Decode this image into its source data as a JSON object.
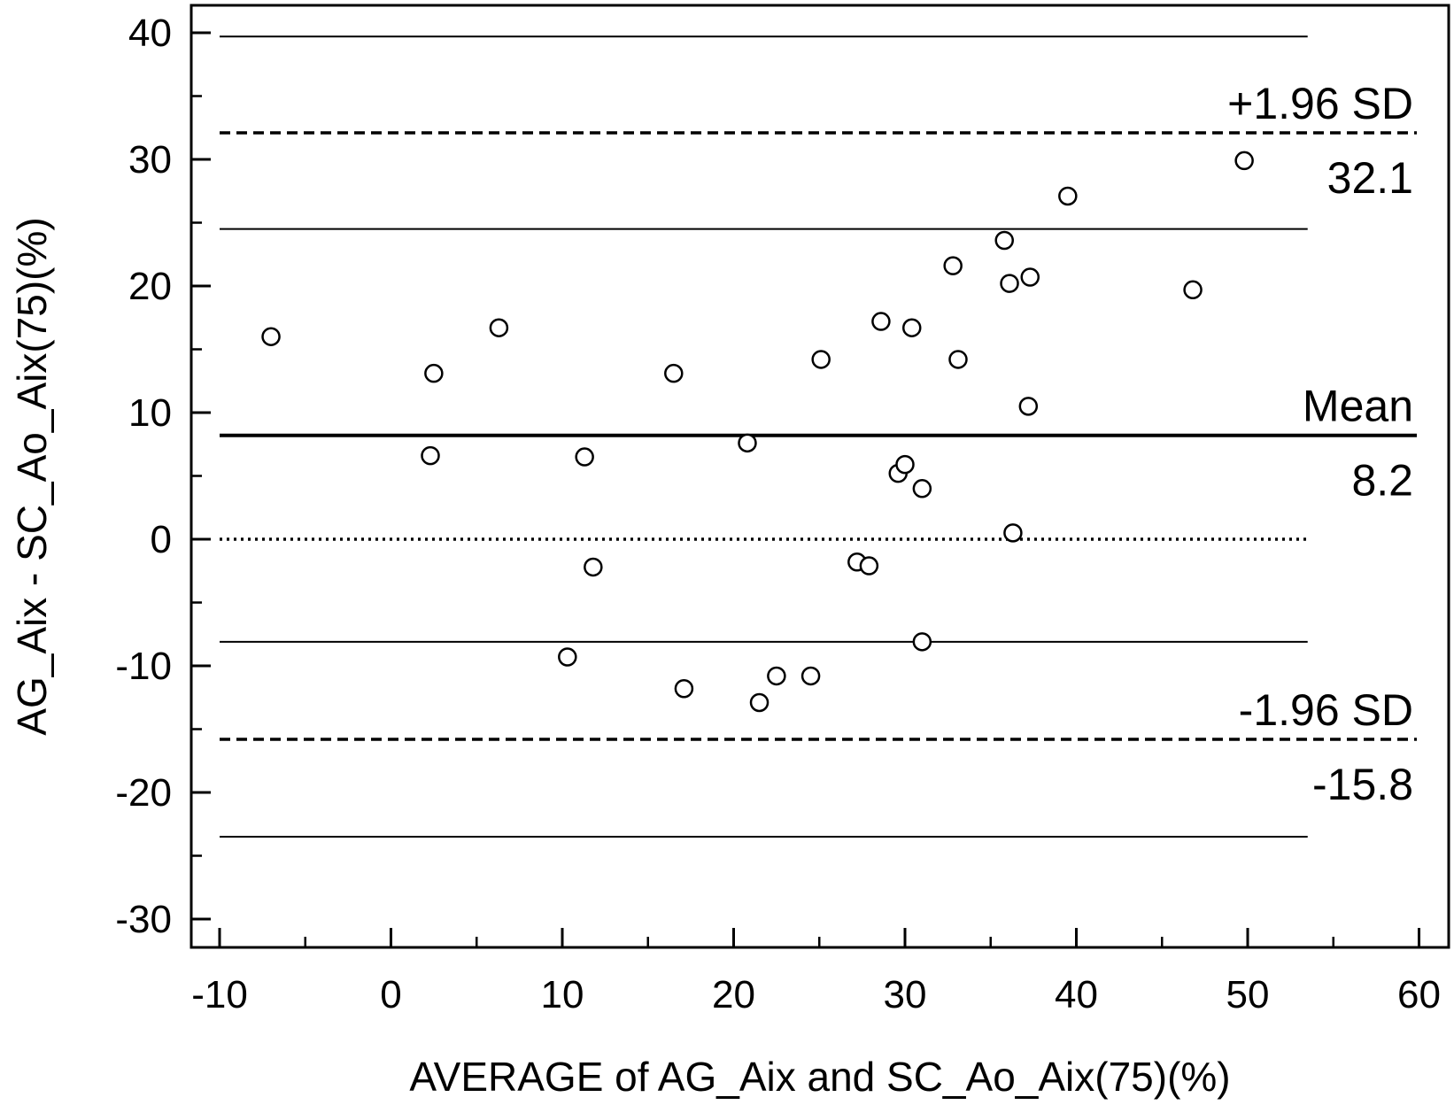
{
  "chart_data": {
    "type": "scatter",
    "title": "",
    "xlabel": "AVERAGE of AG_Aix and SC_Ao_Aix(75)(%)",
    "ylabel": "AG_Aix - SC_Ao_Aix(75)(%)",
    "xlim": [
      -11,
      61
    ],
    "ylim": [
      -32,
      42
    ],
    "x_ticks": [
      -10,
      0,
      10,
      20,
      30,
      40,
      50,
      60
    ],
    "y_ticks": [
      -30,
      -20,
      -10,
      0,
      10,
      20,
      30,
      40
    ],
    "grid": false,
    "points": [
      {
        "x": -7,
        "y": 16.0
      },
      {
        "x": 2.3,
        "y": 6.6
      },
      {
        "x": 2.5,
        "y": 13.1
      },
      {
        "x": 6.3,
        "y": 16.7
      },
      {
        "x": 10.3,
        "y": -9.3
      },
      {
        "x": 11.3,
        "y": 6.5
      },
      {
        "x": 11.8,
        "y": -2.2
      },
      {
        "x": 16.5,
        "y": 13.1
      },
      {
        "x": 17.1,
        "y": -11.8
      },
      {
        "x": 20.8,
        "y": 7.6
      },
      {
        "x": 21.5,
        "y": -12.9
      },
      {
        "x": 22.5,
        "y": -10.8
      },
      {
        "x": 24.5,
        "y": -10.8
      },
      {
        "x": 25.1,
        "y": 14.2
      },
      {
        "x": 27.2,
        "y": -1.8
      },
      {
        "x": 27.9,
        "y": -2.1
      },
      {
        "x": 28.6,
        "y": 17.2
      },
      {
        "x": 29.6,
        "y": 5.2
      },
      {
        "x": 30.0,
        "y": 5.9
      },
      {
        "x": 30.4,
        "y": 16.7
      },
      {
        "x": 31.0,
        "y": 4.0
      },
      {
        "x": 31.0,
        "y": -8.1
      },
      {
        "x": 32.8,
        "y": 21.6
      },
      {
        "x": 33.1,
        "y": 14.2
      },
      {
        "x": 35.8,
        "y": 23.6
      },
      {
        "x": 36.1,
        "y": 20.2
      },
      {
        "x": 36.3,
        "y": 0.5
      },
      {
        "x": 37.2,
        "y": 10.5
      },
      {
        "x": 37.3,
        "y": 20.7
      },
      {
        "x": 39.5,
        "y": 27.1
      },
      {
        "x": 46.8,
        "y": 19.7
      },
      {
        "x": 49.8,
        "y": 29.9
      }
    ],
    "reference_lines": [
      {
        "y": 39.7,
        "style": "solid-thin"
      },
      {
        "y": 32.1,
        "style": "dashed",
        "label_above": "+1.96 SD",
        "label_below": "32.1"
      },
      {
        "y": 24.5,
        "style": "solid-thin"
      },
      {
        "y": 8.2,
        "style": "solid-thick",
        "label_above": "Mean",
        "label_below": "8.2"
      },
      {
        "y": 0,
        "style": "dotted"
      },
      {
        "y": -8.1,
        "style": "solid-thin"
      },
      {
        "y": -15.8,
        "style": "dashed",
        "label_above": "-1.96 SD",
        "label_below": "-15.8"
      },
      {
        "y": -23.5,
        "style": "solid-thin"
      }
    ],
    "line_x_range": [
      -10,
      53.5
    ]
  }
}
